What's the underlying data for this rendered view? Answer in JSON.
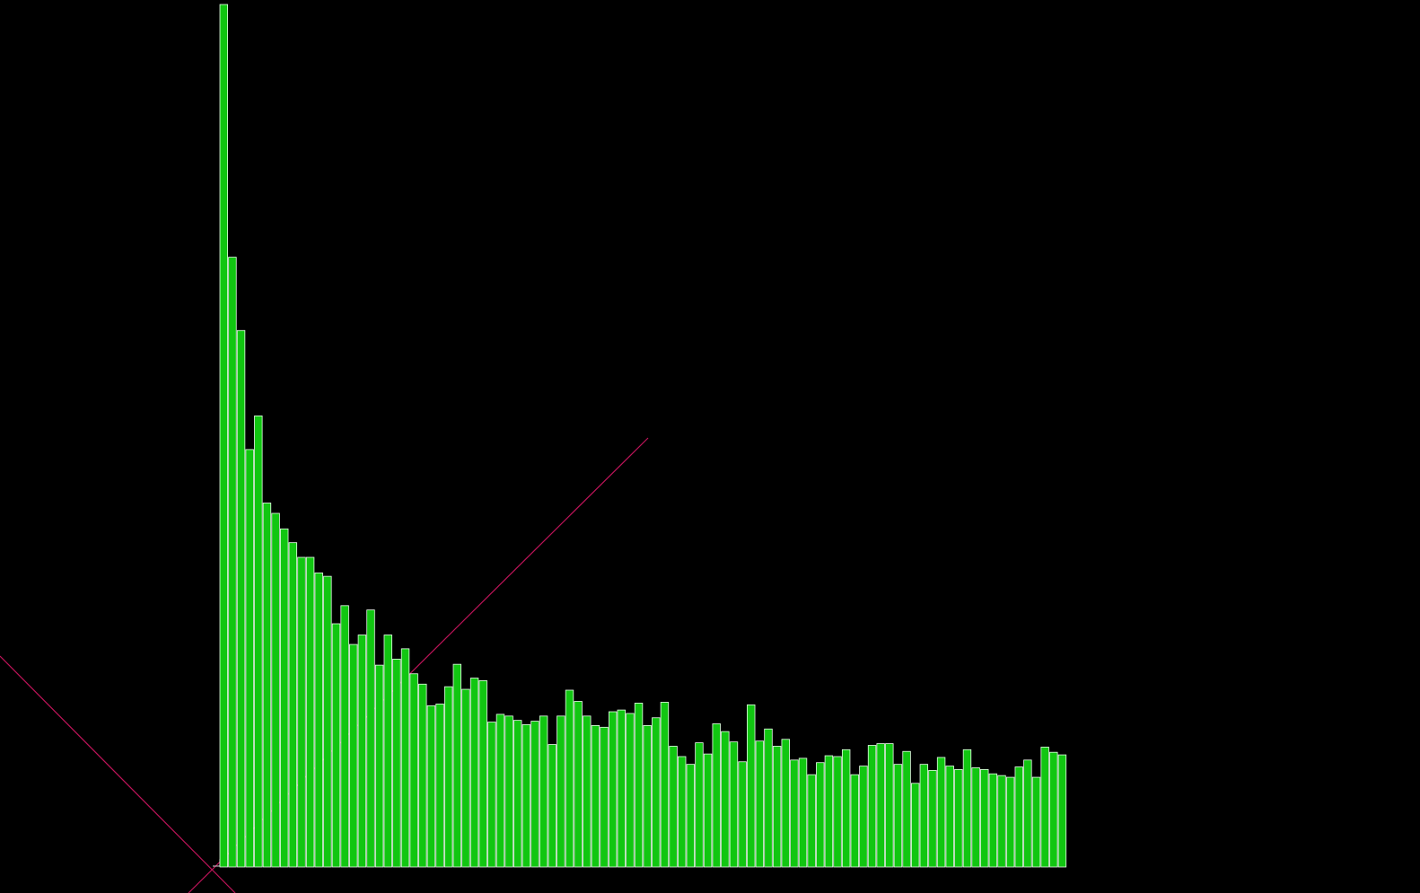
{
  "colors": {
    "background": "#000000",
    "bar_fill": "#11c611",
    "bar_edge": "#e8ffe8",
    "guide_line": "#c0145a"
  },
  "chart_data": {
    "type": "bar",
    "title": "",
    "xlabel": "",
    "ylabel": "",
    "grid": false,
    "legend": "none",
    "ylim": [
      0,
      1000
    ],
    "values": [
      1000,
      707,
      622,
      484,
      523,
      422,
      410,
      392,
      376,
      359,
      359,
      341,
      337,
      282,
      303,
      258,
      269,
      298,
      234,
      269,
      241,
      253,
      224,
      212,
      187,
      189,
      209,
      235,
      206,
      219,
      216,
      168,
      177,
      175,
      170,
      165,
      169,
      175,
      142,
      175,
      205,
      192,
      175,
      164,
      162,
      180,
      182,
      178,
      190,
      164,
      173,
      191,
      140,
      128,
      119,
      144,
      131,
      166,
      157,
      145,
      122,
      188,
      146,
      160,
      140,
      148,
      124,
      126,
      107,
      121,
      129,
      128,
      136,
      107,
      117,
      141,
      143,
      143,
      119,
      134,
      97,
      119,
      112,
      127,
      117,
      113,
      136,
      115,
      113,
      108,
      106,
      104,
      116,
      124,
      104,
      139,
      133,
      130
    ]
  }
}
